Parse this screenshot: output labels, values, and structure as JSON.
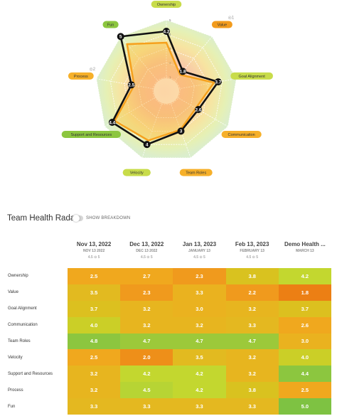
{
  "radar": {
    "axes": [
      {
        "name": "Ownership",
        "value": 4.2,
        "color": "#c8dc4a",
        "count": "3"
      },
      {
        "name": "Value",
        "value": 1.8,
        "color": "#f29b1d",
        "count": "1"
      },
      {
        "name": "Goal Alignment",
        "value": 3.7,
        "color": "#c8dc4a",
        "count": ""
      },
      {
        "name": "Communication",
        "value": 2.6,
        "color": "#f6b02a",
        "count": ""
      },
      {
        "name": "Team Roles",
        "value": 3.0,
        "color": "#f6b02a",
        "count": ""
      },
      {
        "name": "Velocity",
        "value": 4.0,
        "color": "#c8dc4a",
        "count": ""
      },
      {
        "name": "Support and Resources",
        "value": 4.4,
        "color": "#8cc63f",
        "count": ""
      },
      {
        "name": "Process",
        "value": 2.5,
        "color": "#f6b02a",
        "count": "2"
      },
      {
        "name": "Fun",
        "value": 5.0,
        "color": "#8cc63f",
        "count": ""
      }
    ],
    "point_labels": [
      "4.2",
      "1.8",
      "3.7",
      "2.6",
      "3",
      "4",
      "4.4",
      "2.5",
      "5"
    ],
    "ticks": [
      "1",
      "2",
      "3",
      "4",
      "5"
    ]
  },
  "section": {
    "title": "Team Health Radar",
    "toggle_label": "SHOW BREAKDOWN"
  },
  "columns": [
    {
      "date": "Nov 13, 2022",
      "sub": "NOV 13 2022",
      "meta": "4.5 ⊙ 5"
    },
    {
      "date": "Dec 13, 2022",
      "sub": "DEC 13 2022",
      "meta": "4.5 ⊙ 5"
    },
    {
      "date": "Jan 13, 2023",
      "sub": "JANUARY 13",
      "meta": "4.5 ⊙ 5"
    },
    {
      "date": "Feb 13, 2023",
      "sub": "FEBRUARY 13",
      "meta": "4.5 ⊙ 5"
    },
    {
      "date": "Demo Health ...",
      "sub": "MARCH 13",
      "meta": ""
    }
  ],
  "rows": [
    {
      "label": "Ownership",
      "cells": [
        {
          "v": "2.5",
          "c": "#f0a81e"
        },
        {
          "v": "2.7",
          "c": "#f0a81e"
        },
        {
          "v": "2.3",
          "c": "#f09a1d"
        },
        {
          "v": "3.8",
          "c": "#d9c21f"
        },
        {
          "v": "4.2",
          "c": "#c3d72f"
        }
      ]
    },
    {
      "label": "Value",
      "cells": [
        {
          "v": "3.5",
          "c": "#e2ba20"
        },
        {
          "v": "2.3",
          "c": "#f09a1d"
        },
        {
          "v": "3.3",
          "c": "#eab21f"
        },
        {
          "v": "2.2",
          "c": "#f09a1d"
        },
        {
          "v": "1.8",
          "c": "#ec7f14"
        }
      ]
    },
    {
      "label": "Goal Alignment",
      "cells": [
        {
          "v": "3.7",
          "c": "#dcc01f"
        },
        {
          "v": "3.2",
          "c": "#e7b51f"
        },
        {
          "v": "3.0",
          "c": "#eab21f"
        },
        {
          "v": "3.2",
          "c": "#e7b51f"
        },
        {
          "v": "3.7",
          "c": "#dcc01f"
        }
      ]
    },
    {
      "label": "Communication",
      "cells": [
        {
          "v": "4.0",
          "c": "#cbcf27"
        },
        {
          "v": "3.2",
          "c": "#e7b51f"
        },
        {
          "v": "3.2",
          "c": "#e7b51f"
        },
        {
          "v": "3.3",
          "c": "#e4b820"
        },
        {
          "v": "2.6",
          "c": "#f0a81e"
        }
      ]
    },
    {
      "label": "Team Roles",
      "cells": [
        {
          "v": "4.8",
          "c": "#8cc63f"
        },
        {
          "v": "4.7",
          "c": "#9cc93a"
        },
        {
          "v": "4.7",
          "c": "#9cc93a"
        },
        {
          "v": "4.7",
          "c": "#9cc93a"
        },
        {
          "v": "3.0",
          "c": "#eab21f"
        }
      ]
    },
    {
      "label": "Velocity",
      "cells": [
        {
          "v": "2.5",
          "c": "#f0a81e"
        },
        {
          "v": "2.0",
          "c": "#ee8f19"
        },
        {
          "v": "3.5",
          "c": "#e2ba20"
        },
        {
          "v": "3.2",
          "c": "#e7b51f"
        },
        {
          "v": "4.0",
          "c": "#cbcf27"
        }
      ]
    },
    {
      "label": "Support and Resources",
      "cells": [
        {
          "v": "3.2",
          "c": "#e7b51f"
        },
        {
          "v": "4.2",
          "c": "#c3d72f"
        },
        {
          "v": "4.2",
          "c": "#c3d72f"
        },
        {
          "v": "3.2",
          "c": "#e7b51f"
        },
        {
          "v": "4.4",
          "c": "#8cc63f"
        }
      ]
    },
    {
      "label": "Process",
      "cells": [
        {
          "v": "3.2",
          "c": "#e7b51f"
        },
        {
          "v": "4.5",
          "c": "#b7d434"
        },
        {
          "v": "4.2",
          "c": "#c3d72f"
        },
        {
          "v": "3.8",
          "c": "#d9c21f"
        },
        {
          "v": "2.5",
          "c": "#f0a81e"
        }
      ]
    },
    {
      "label": "Fun",
      "cells": [
        {
          "v": "3.3",
          "c": "#e4b820"
        },
        {
          "v": "3.3",
          "c": "#e4b820"
        },
        {
          "v": "3.3",
          "c": "#e4b820"
        },
        {
          "v": "3.3",
          "c": "#e4b820"
        },
        {
          "v": "5.0",
          "c": "#7ec242"
        }
      ]
    }
  ]
}
